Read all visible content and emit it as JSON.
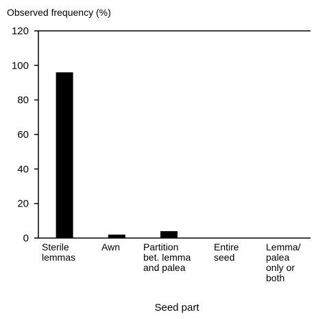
{
  "chart_data": {
    "type": "bar",
    "title": "",
    "ylabel": "Observed frequency (%)",
    "xlabel": "Seed part",
    "ylim": [
      0,
      120
    ],
    "yticks": [
      0,
      20,
      40,
      60,
      80,
      100,
      120
    ],
    "grid": false,
    "categories": [
      "Sterile lemmas",
      "Awn",
      "Partition bet. lemma and palea",
      "Entire seed",
      "Lemma/ palea only or both"
    ],
    "category_label_lines": [
      [
        "Sterile",
        "lemmas"
      ],
      [
        "Awn"
      ],
      [
        "Partition",
        "bet. lemma",
        "and palea"
      ],
      [
        "Entire",
        "seed"
      ],
      [
        "Lemma/",
        "palea",
        "only or",
        "both"
      ]
    ],
    "values": [
      96,
      2,
      4,
      0,
      0
    ],
    "bar_color": "#000000"
  }
}
